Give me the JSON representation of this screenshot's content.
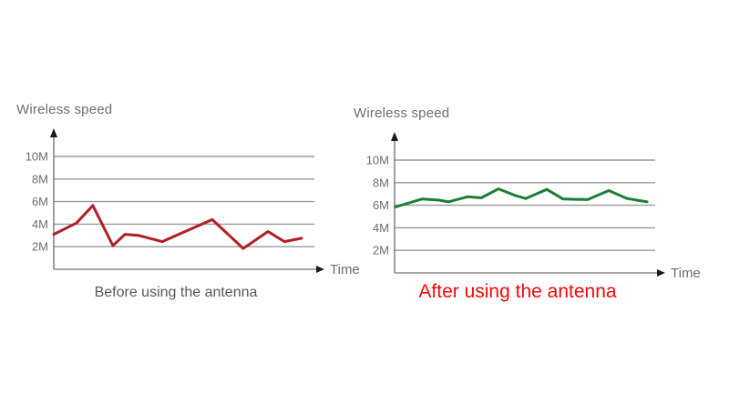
{
  "page": {
    "background": "#ffffff"
  },
  "chart_data": [
    {
      "type": "line",
      "title": "Wireless speed",
      "xlabel": "Time",
      "ylabel": "",
      "caption": "Before using the antenna",
      "caption_color": "#57585a",
      "line_color": "#b01f24",
      "line_width": 3,
      "grid": true,
      "legend": "none",
      "yticks": [
        2,
        4,
        6,
        8,
        10
      ],
      "ytick_labels": [
        "2M",
        "4M",
        "6M",
        "8M",
        "10M"
      ],
      "ylim": [
        0,
        12
      ],
      "x_pct": [
        0,
        8.7,
        15,
        22.7,
        27.3,
        32.5,
        41.6,
        60.8,
        72.7,
        82.2,
        88.5,
        95.1
      ],
      "values": [
        3.1,
        4.1,
        5.65,
        2.1,
        3.1,
        3.0,
        2.45,
        4.4,
        1.85,
        3.35,
        2.45,
        2.75
      ]
    },
    {
      "type": "line",
      "title": "Wireless speed",
      "xlabel": "Time",
      "ylabel": "",
      "caption": "After using the antenna",
      "caption_color": "#f70808",
      "line_color": "#1c7e34",
      "line_width": 3,
      "grid": true,
      "legend": "none",
      "yticks": [
        2,
        4,
        6,
        8,
        10
      ],
      "ytick_labels": [
        "2M",
        "4M",
        "6M",
        "8M",
        "10M"
      ],
      "ylim": [
        0,
        12
      ],
      "x_pct": [
        0.3,
        10.5,
        17.1,
        20.6,
        28,
        33.2,
        39.9,
        46.5,
        50.3,
        58.4,
        64.7,
        74.1,
        82.2,
        89.2,
        96.9
      ],
      "values": [
        5.85,
        6.55,
        6.45,
        6.3,
        6.75,
        6.65,
        7.45,
        6.85,
        6.6,
        7.4,
        6.55,
        6.5,
        7.3,
        6.6,
        6.3
      ]
    }
  ]
}
